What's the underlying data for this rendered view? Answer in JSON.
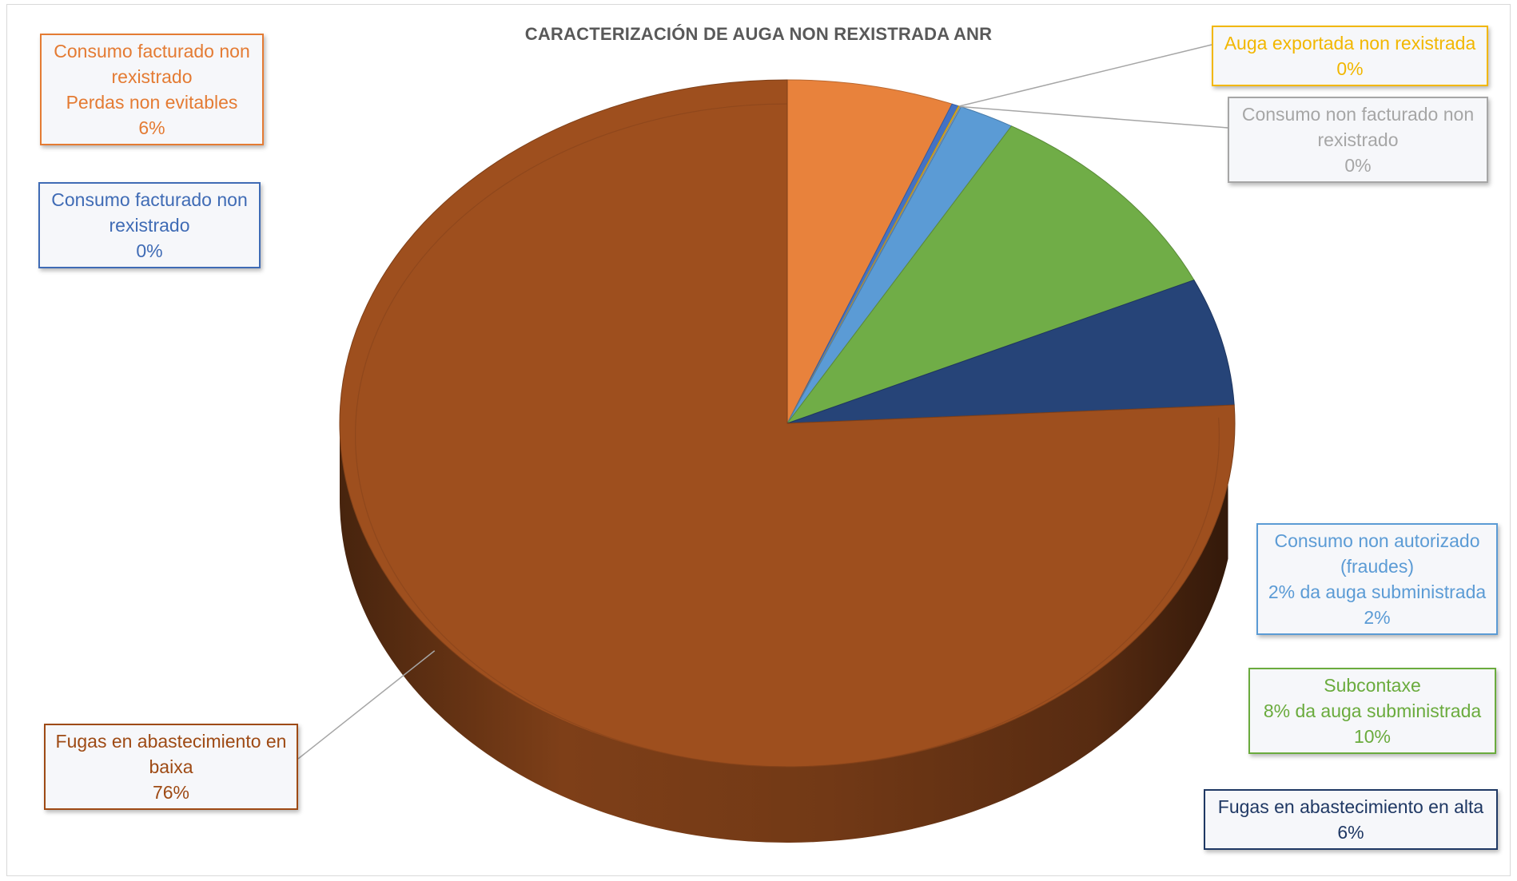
{
  "chart_data": {
    "type": "pie",
    "title": "CARACTERIZACIÓN DE AUGA NON REXISTRADA ANR",
    "slices": [
      {
        "key": "perdas",
        "lines": [
          "Consumo facturado non",
          "rexistrado",
          "Perdas non evitables"
        ],
        "percent_label": "6%",
        "value": 6.0,
        "color": "#e8823c"
      },
      {
        "key": "facturado",
        "lines": [
          "Consumo facturado non",
          "rexistrado"
        ],
        "percent_label": "0%",
        "value": 0.25,
        "color": "#4472c4"
      },
      {
        "key": "exportada",
        "lines": [
          "Auga exportada non rexistrada"
        ],
        "percent_label": "0%",
        "value": 0.05,
        "color": "#ffc000"
      },
      {
        "key": "non_facturado",
        "lines": [
          "Consumo non facturado non",
          "rexistrado"
        ],
        "percent_label": "0%",
        "value": 0.05,
        "color": "#a5a5a5"
      },
      {
        "key": "fraudes",
        "lines": [
          "Consumo non autorizado",
          "(fraudes)",
          "2% da auga subministrada"
        ],
        "percent_label": "2%",
        "value": 2.0,
        "color": "#5b9bd5"
      },
      {
        "key": "subcontaxe",
        "lines": [
          "Subcontaxe",
          "8% da auga subministrada"
        ],
        "percent_label": "10%",
        "value": 9.8,
        "color": "#70ad47"
      },
      {
        "key": "alta",
        "lines": [
          "Fugas en abastecimiento en alta"
        ],
        "percent_label": "6%",
        "value": 6.0,
        "color": "#264478"
      },
      {
        "key": "baixa",
        "lines": [
          "Fugas en abastecimiento en",
          "baixa"
        ],
        "percent_label": "76%",
        "value": 75.85,
        "color": "#9e4f1e"
      }
    ],
    "label_colors": {
      "perdas": "#e47b33",
      "facturado": "#3f6bb5",
      "exportada": "#f2b700",
      "non_facturado": "#a6a6a6",
      "fraudes": "#5b9bd5",
      "subcontaxe": "#6aab3d",
      "alta": "#1f3864",
      "baixa": "#9e4a14"
    },
    "legend": "none",
    "style": "3d-exploded"
  }
}
